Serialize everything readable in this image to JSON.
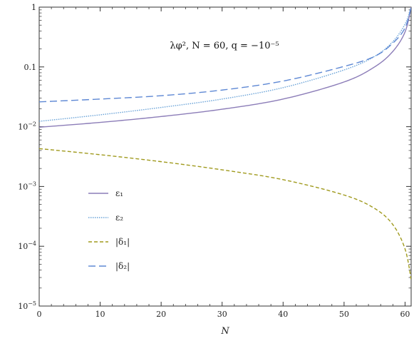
{
  "chart_data": {
    "type": "line",
    "title": "",
    "annotation": "λφ², N = 60, q = −10⁻⁵",
    "xlabel": "N",
    "ylabel": "",
    "xlim": [
      0,
      61
    ],
    "ylim": [
      1e-05,
      1
    ],
    "yscale": "log",
    "x_ticks": [
      0,
      10,
      20,
      30,
      40,
      50,
      60
    ],
    "y_ticks": [
      {
        "value": 1e-05,
        "base": "10",
        "exp": "−5",
        "label": ""
      },
      {
        "value": 0.0001,
        "base": "10",
        "exp": "−4",
        "label": ""
      },
      {
        "value": 0.001,
        "base": "10",
        "exp": "−3",
        "label": ""
      },
      {
        "value": 0.01,
        "base": "10",
        "exp": "−2",
        "label": ""
      },
      {
        "value": 0.1,
        "base": "",
        "exp": "",
        "label": "0.1"
      },
      {
        "value": 1,
        "base": "",
        "exp": "",
        "label": "1"
      }
    ],
    "legend_position": "lower-left",
    "grid": false,
    "series": [
      {
        "name": "ε₁",
        "color": "#8c7db8",
        "dash": "solid",
        "x": [
          0,
          10,
          20,
          30,
          40,
          50,
          55,
          58,
          60,
          61
        ],
        "y": [
          0.0098,
          0.0118,
          0.0148,
          0.0196,
          0.029,
          0.056,
          0.1,
          0.182,
          0.385,
          1.0
        ]
      },
      {
        "name": "ε₂",
        "color": "#6aa3d8",
        "dash": "dotted",
        "x": [
          0,
          10,
          20,
          30,
          40,
          50,
          55,
          58,
          60,
          61
        ],
        "y": [
          0.0123,
          0.0158,
          0.021,
          0.029,
          0.045,
          0.089,
          0.15,
          0.265,
          0.52,
          1.0
        ]
      },
      {
        "name": "|δ₁|",
        "color": "#a09a1e",
        "dash": "short-dash",
        "x": [
          0,
          10,
          20,
          30,
          40,
          50,
          55,
          58,
          60,
          61
        ],
        "y": [
          0.0043,
          0.0034,
          0.0026,
          0.0019,
          0.0013,
          0.00072,
          0.00043,
          0.00023,
          9e-05,
          2.8e-05
        ]
      },
      {
        "name": "|δ₂|",
        "color": "#5e88d4",
        "dash": "long-dash",
        "x": [
          0,
          10,
          20,
          30,
          40,
          50,
          55,
          58,
          60,
          61
        ],
        "y": [
          0.026,
          0.029,
          0.033,
          0.041,
          0.058,
          0.102,
          0.15,
          0.25,
          0.45,
          1.0
        ]
      }
    ]
  }
}
